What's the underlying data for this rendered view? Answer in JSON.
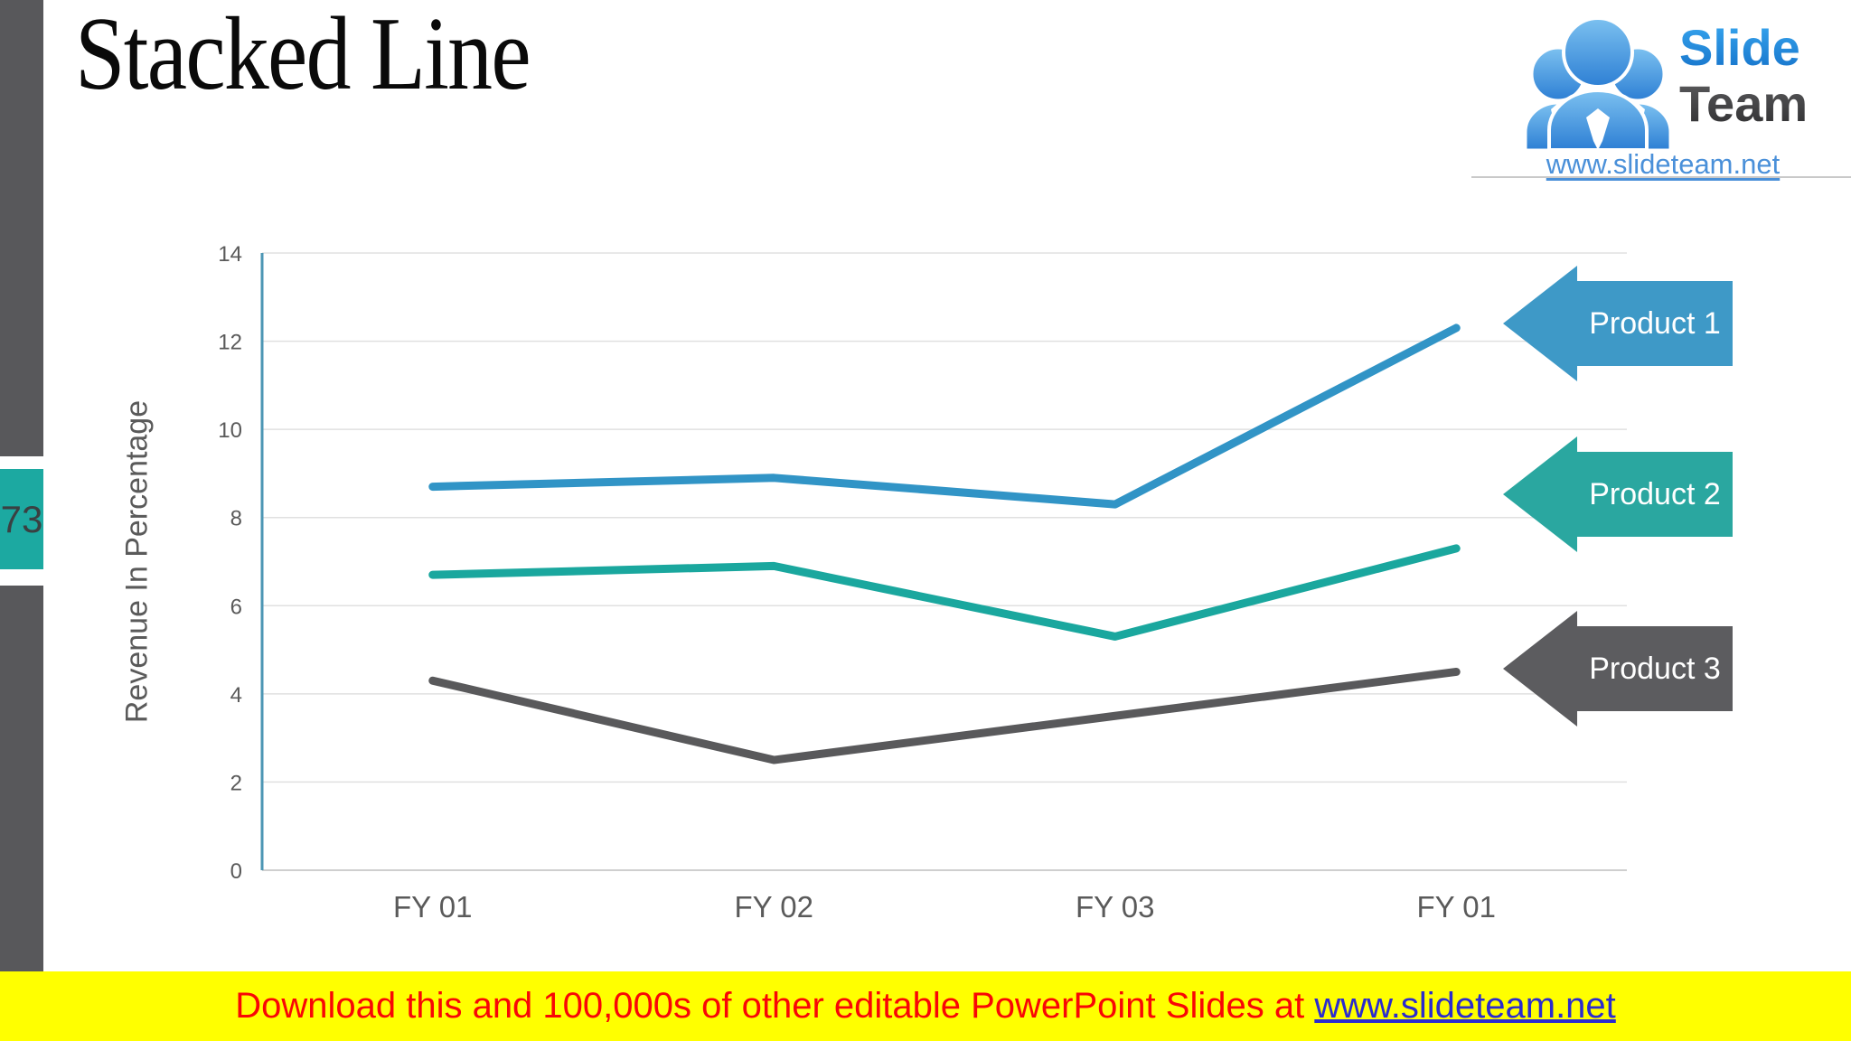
{
  "slide": {
    "title": "Stacked Line",
    "page_number": "73"
  },
  "logo": {
    "brand_top": "Slide",
    "brand_bottom": "Team",
    "url": "www.slideteam.net",
    "icon": "people-group-icon"
  },
  "banner": {
    "text": "Download this and 100,000s of other editable PowerPoint Slides at ",
    "link": "www.slideteam.net"
  },
  "chart_data": {
    "type": "line",
    "title": "",
    "xlabel": "",
    "ylabel": "Revenue In Percentage",
    "categories": [
      "FY 01",
      "FY 02",
      "FY 03",
      "FY 01"
    ],
    "series": [
      {
        "name": "Product 1",
        "color": "#3194c6",
        "values": [
          8.7,
          8.9,
          8.3,
          12.3
        ]
      },
      {
        "name": "Product 2",
        "color": "#1aa79e",
        "values": [
          6.7,
          6.9,
          5.3,
          7.3
        ]
      },
      {
        "name": "Product 3",
        "color": "#59595b",
        "values": [
          4.3,
          2.5,
          3.5,
          4.5
        ]
      }
    ],
    "ylim": [
      0,
      14
    ],
    "ytick_step": 2,
    "grid": true,
    "legend_position": "right-arrows"
  },
  "legend": {
    "items": [
      {
        "label": "Product 1",
        "color": "#3e99c7"
      },
      {
        "label": "Product 2",
        "color": "#2aa7a0"
      },
      {
        "label": "Product 3",
        "color": "#5c5c5f"
      }
    ]
  },
  "colors": {
    "sidebar_gray": "#58585b",
    "accent_teal": "#1ca9a1",
    "axis_line_blue": "#4c96b4",
    "gridline_gray": "#e0e0e0",
    "tick_label_gray": "#5a5a5a",
    "banner_yellow": "#ffff00",
    "banner_red": "#f90606",
    "banner_link_blue": "#2b2bce",
    "logo_blue": "#2e9ae4",
    "logo_gray": "#4c4c4e"
  }
}
